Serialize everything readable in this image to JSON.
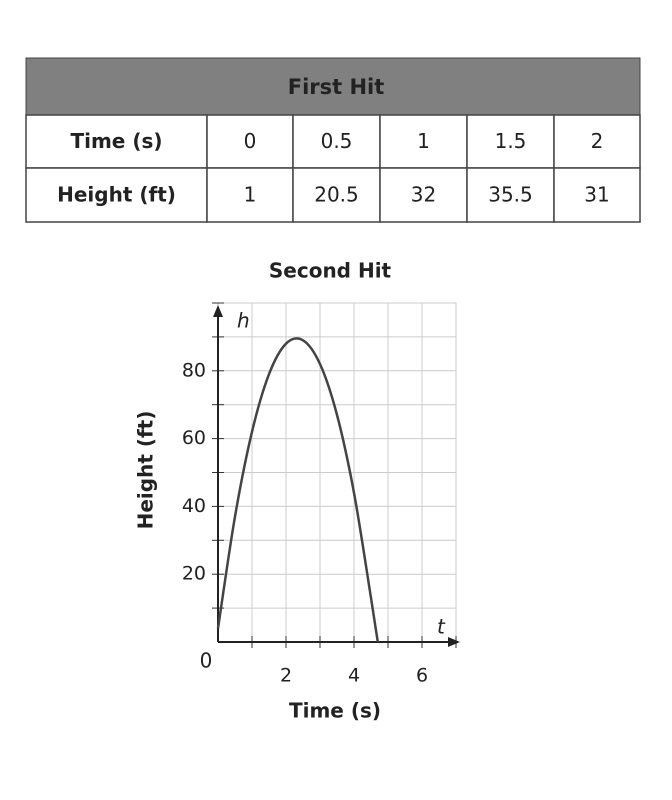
{
  "table": {
    "title": "First Hit",
    "rows": [
      [
        "Time (s)",
        0,
        0.5,
        1,
        1.5,
        2
      ],
      [
        "Height (ft)",
        1,
        20.5,
        32,
        35.5,
        31
      ]
    ]
  },
  "chart_data": {
    "type": "line",
    "title": "Second Hit",
    "x_label": "Time (s)",
    "y_label": "Height (ft)",
    "x_axis_var": "t",
    "y_axis_var": "h",
    "origin_label": "0",
    "x": [
      0,
      0.5,
      1,
      1.5,
      2,
      2.5,
      3,
      3.5,
      4,
      4.5,
      4.7
    ],
    "series": [
      {
        "name": "Second Hit",
        "color": "#444444",
        "values": [
          4,
          37,
          62,
          79,
          88,
          89,
          82,
          67,
          44,
          13,
          0
        ]
      }
    ],
    "xlim": [
      0,
      7
    ],
    "ylim": [
      0,
      100
    ],
    "xticks": [
      2,
      4,
      6
    ],
    "yticks": [
      20,
      40,
      60,
      80
    ],
    "minor_xticks": [
      1,
      2,
      3,
      4,
      5,
      6,
      7
    ],
    "minor_yticks": [
      10,
      20,
      30,
      40,
      50,
      60,
      70,
      80,
      90,
      100
    ],
    "grid": true
  }
}
